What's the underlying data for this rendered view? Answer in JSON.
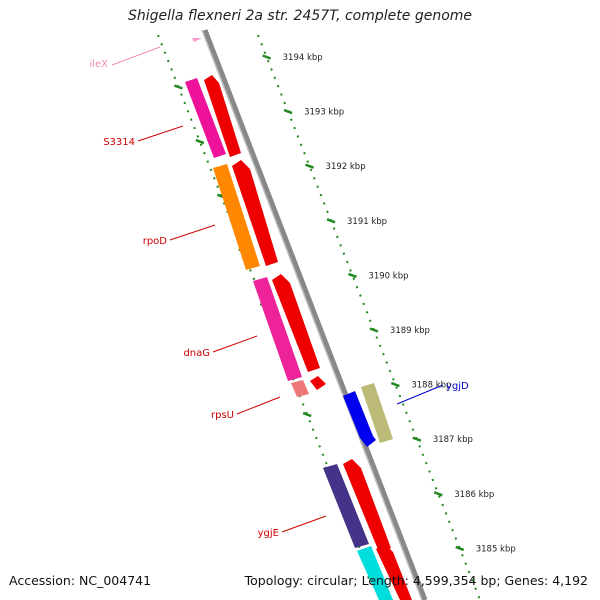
{
  "title": "Shigella flexneri 2a str. 2457T, complete genome",
  "footer": {
    "accession": "Accession: NC_004741",
    "summary": "Topology: circular; Length: 4,599,354 bp; Genes: 4,192"
  },
  "scale": {
    "ticks": [
      "3194 kbp",
      "3193 kbp",
      "3192 kbp",
      "3191 kbp",
      "3190 kbp",
      "3189 kbp",
      "3188 kbp",
      "3187 kbp",
      "3186 kbp",
      "3185 kbp"
    ]
  },
  "genes": [
    {
      "name": "ileX",
      "label_color": "#ee88bb",
      "color": "#ff99cc",
      "strand": "reverse"
    },
    {
      "name": "S3314",
      "label_color": "#cc0000",
      "color": "#ee1199",
      "strand": "reverse"
    },
    {
      "name": "rpoD",
      "label_color": "#cc0000",
      "color": "#ff8800",
      "strand": "reverse"
    },
    {
      "name": "dnaG",
      "label_color": "#cc0000",
      "color": "#ee2299",
      "strand": "reverse"
    },
    {
      "name": "rpsU",
      "label_color": "#cc0000",
      "color": "#ee7777",
      "strand": "reverse"
    },
    {
      "name": "ygjD",
      "label_color": "#0000cc",
      "color": "#0000ee",
      "strand": "forward"
    },
    {
      "name": "ygjE",
      "label_color": "#cc0000",
      "color": "#443388",
      "strand": "reverse"
    }
  ],
  "colors": {
    "backbone": "#888888",
    "cds_track": "#ff0000",
    "scale_dots": "#228822",
    "ygjD_sibling": "#bbbb77",
    "cyan_gene": "#00dddd"
  }
}
